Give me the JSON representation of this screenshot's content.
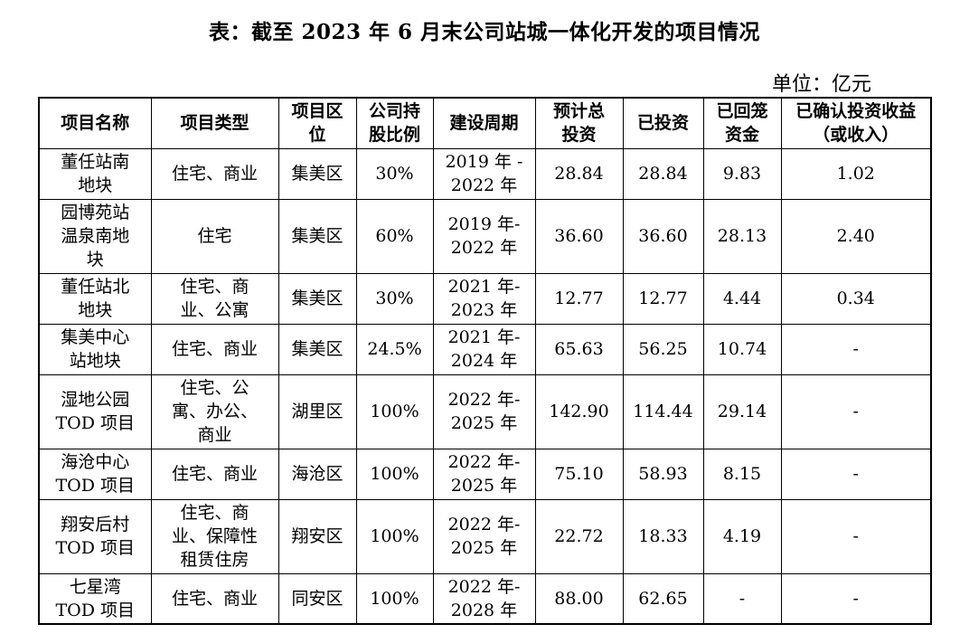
{
  "title": "表：截至 2023 年 6 月末公司站城一体化开发的项目情况",
  "unit": "单位：亿元",
  "table": {
    "headers": [
      "项目名称",
      "项目类型",
      "项目区\n位",
      "公司持\n股比例",
      "建设周期",
      "预计总\n投资",
      "已投资",
      "已回笼\n资金",
      "已确认投资收益\n（或收入）"
    ],
    "rows": [
      [
        "董任站南\n地块",
        "住宅、商业",
        "集美区",
        "30%",
        "2019 年 -\n2022 年",
        "28.84",
        "28.84",
        "9.83",
        "1.02"
      ],
      [
        "园博苑站\n温泉南地\n块",
        "住宅",
        "集美区",
        "60%",
        "2019 年-\n2022 年",
        "36.60",
        "36.60",
        "28.13",
        "2.40"
      ],
      [
        "董任站北\n地块",
        "住宅、商\n业、公寓",
        "集美区",
        "30%",
        "2021 年-\n2023 年",
        "12.77",
        "12.77",
        "4.44",
        "0.34"
      ],
      [
        "集美中心\n站地块",
        "住宅、商业",
        "集美区",
        "24.5%",
        "2021 年-\n2024 年",
        "65.63",
        "56.25",
        "10.74",
        "-"
      ],
      [
        "湿地公园\nTOD 项目",
        "住宅、公\n寓、办公、\n商业",
        "湖里区",
        "100%",
        "2022 年-\n2025 年",
        "142.90",
        "114.44",
        "29.14",
        "-"
      ],
      [
        "海沧中心\nTOD 项目",
        "住宅、商业",
        "海沧区",
        "100%",
        "2022 年-\n2025 年",
        "75.10",
        "58.93",
        "8.15",
        "-"
      ],
      [
        "翔安后村\nTOD 项目",
        "住宅、商\n业、保障性\n租赁住房",
        "翔安区",
        "100%",
        "2022 年-\n2025 年",
        "22.72",
        "18.33",
        "4.19",
        "-"
      ],
      [
        "七星湾\nTOD 项目",
        "住宅、商业",
        "同安区",
        "100%",
        "2022 年-\n2028 年",
        "88.00",
        "62.65",
        "-",
        "-"
      ]
    ]
  }
}
